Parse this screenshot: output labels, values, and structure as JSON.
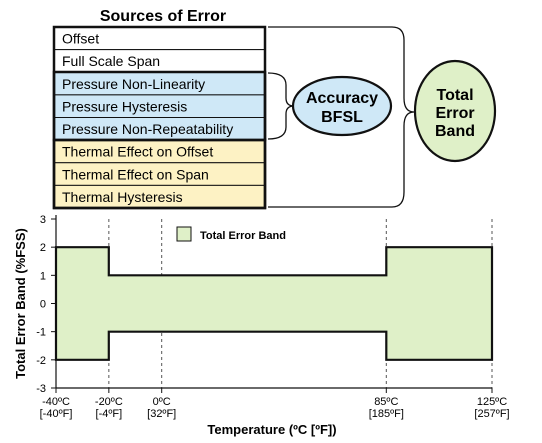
{
  "sources": {
    "title": "Sources of Error",
    "items": [
      {
        "label": "Offset",
        "group": "plain"
      },
      {
        "label": "Full Scale Span",
        "group": "plain"
      },
      {
        "label": "Pressure Non-Linearity",
        "group": "accuracy"
      },
      {
        "label": "Pressure Hysteresis",
        "group": "accuracy"
      },
      {
        "label": "Pressure Non-Repeatability",
        "group": "accuracy"
      },
      {
        "label": "Thermal Effect on Offset",
        "group": "thermal"
      },
      {
        "label": "Thermal Effect on Span",
        "group": "thermal"
      },
      {
        "label": "Thermal Hysteresis",
        "group": "thermal"
      }
    ]
  },
  "accuracy_node": {
    "line1": "Accuracy",
    "line2": "BFSL"
  },
  "total_node": {
    "line1": "Total",
    "line2": "Error",
    "line3": "Band"
  },
  "colors": {
    "plain": "#ffffff",
    "accuracy": "#cfe8f7",
    "thermal": "#fdf2c4",
    "band_fill": "#dff0c8",
    "line": "#111111"
  },
  "chart_data": {
    "type": "area",
    "legend": {
      "label": "Total Error Band",
      "placement": "top-center"
    },
    "ylabel": "Total Error Band (%FSS)",
    "xlabel": "Temperature (ºC [ºF])",
    "ylim": [
      -3,
      3
    ],
    "yticks": [
      3,
      2,
      1,
      0,
      -1,
      -2,
      -3
    ],
    "xlim": [
      -40,
      125
    ],
    "xticks": [
      {
        "value": -40,
        "line1": "-40ºC",
        "line2": "[-40ºF]"
      },
      {
        "value": -20,
        "line1": "-20ºC",
        "line2": "[-4ºF]"
      },
      {
        "value": 0,
        "line1": "0ºC",
        "line2": "[32ºF]"
      },
      {
        "value": 85,
        "line1": "85ºC",
        "line2": "[185ºF]"
      },
      {
        "value": 125,
        "line1": "125ºC",
        "line2": "[257ºF]"
      }
    ],
    "band_upper": [
      [
        -40,
        2
      ],
      [
        -20,
        2
      ],
      [
        -20,
        1
      ],
      [
        85,
        1
      ],
      [
        85,
        2
      ],
      [
        125,
        2
      ]
    ],
    "band_lower": [
      [
        -40,
        -2
      ],
      [
        -20,
        -2
      ],
      [
        -20,
        -1
      ],
      [
        85,
        -1
      ],
      [
        85,
        -2
      ],
      [
        125,
        -2
      ]
    ],
    "grid": "vertical dashed at x ticks"
  }
}
